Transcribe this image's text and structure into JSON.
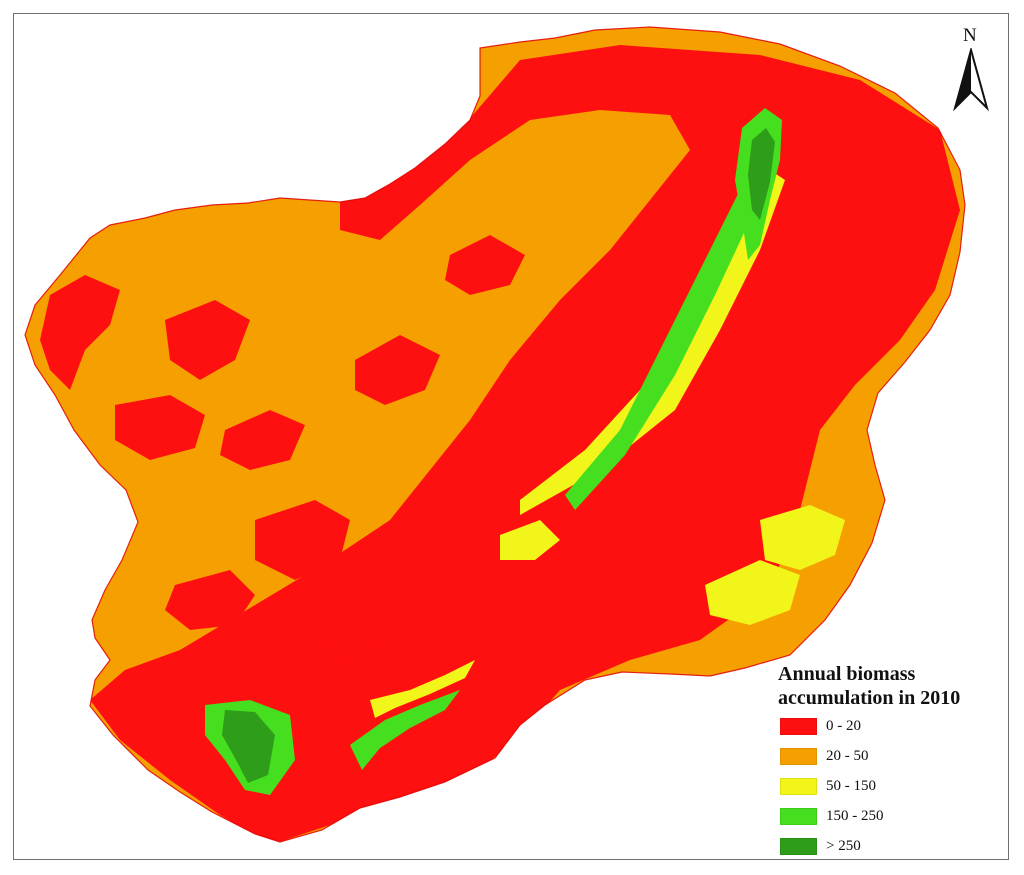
{
  "map": {
    "north_label": "N",
    "legend": {
      "title_line1": "Annual biomass",
      "title_line2": "accumulation in 2010",
      "classes": [
        {
          "label": "0 - 20",
          "color": "#ff1010"
        },
        {
          "label": "20 - 50",
          "color": "#f5a000"
        },
        {
          "label": "50 - 150",
          "color": "#f2f51a"
        },
        {
          "label": "150 - 250",
          "color": "#45df1f"
        },
        {
          "label": "> 250",
          "color": "#2d9d1a"
        }
      ]
    },
    "colors": {
      "background": "#ffffff",
      "frame": "#6f6f6f",
      "north_arrow": "#111111"
    },
    "map_icon": "north-arrow-icon"
  }
}
